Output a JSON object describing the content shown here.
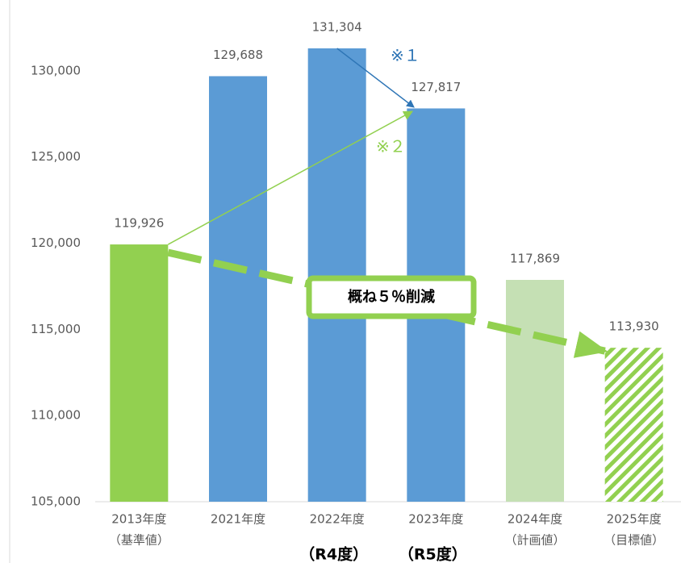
{
  "chart_data": {
    "type": "bar",
    "categories": [
      "2013年度",
      "2021年度",
      "2022年度",
      "2023年度",
      "2024年度",
      "2025年度"
    ],
    "category_notes": [
      "（基準値）",
      null,
      null,
      null,
      "（計画値）",
      "（目標値）"
    ],
    "fiscal_notes": [
      null,
      null,
      "（R4度）",
      "（R5度）",
      null,
      null
    ],
    "values": [
      119926,
      129688,
      131304,
      127817,
      117869,
      113930
    ],
    "value_labels": [
      "119,926",
      "129,688",
      "131,304",
      "127,817",
      "117,869",
      "113,930"
    ],
    "colors": [
      "#92d050",
      "#5b9bd5",
      "#5b9bd5",
      "#5b9bd5",
      "#c5e0b4",
      "#92d050"
    ],
    "bar_styles": [
      "solid",
      "solid",
      "solid",
      "solid",
      "solid",
      "hatched"
    ],
    "ylim": [
      105000,
      133500
    ],
    "yticks": [
      {
        "value": 105000,
        "label": "105,000"
      },
      {
        "value": 110000,
        "label": "110,000"
      },
      {
        "value": 115000,
        "label": "115,000"
      },
      {
        "value": 120000,
        "label": "120,000"
      },
      {
        "value": 125000,
        "label": "125,000"
      },
      {
        "value": 130000,
        "label": "130,000"
      }
    ],
    "annotations": {
      "note1": "※１",
      "note2": "※２",
      "reduction": "概ね５％削減"
    },
    "grid": false
  }
}
